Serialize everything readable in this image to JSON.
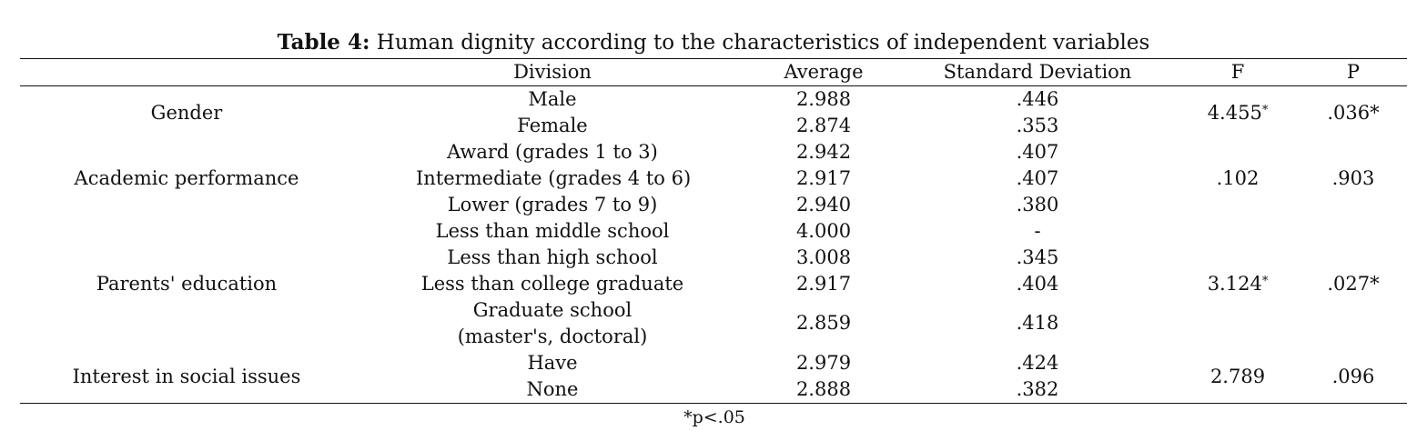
{
  "caption": {
    "label": "Table 4:",
    "text": " Human dignity according to the characteristics of independent variables"
  },
  "columns": {
    "division": "Division",
    "average": "Average",
    "sd": "Standard Deviation",
    "f": "F",
    "p": "P"
  },
  "groups": [
    {
      "name": "Gender",
      "f": "4.455",
      "f_mark": "*",
      "p": ".036",
      "p_mark": "*",
      "rows": [
        {
          "division": "Male",
          "average": "2.988",
          "sd": ".446"
        },
        {
          "division": "Female",
          "average": "2.874",
          "sd": ".353"
        }
      ]
    },
    {
      "name": "Academic performance",
      "f": ".102",
      "f_mark": "",
      "p": ".903",
      "p_mark": "",
      "rows": [
        {
          "division": "Award (grades 1 to 3)",
          "average": "2.942",
          "sd": ".407"
        },
        {
          "division": "Intermediate (grades 4 to 6)",
          "average": "2.917",
          "sd": ".407"
        },
        {
          "division": "Lower (grades 7 to 9)",
          "average": "2.940",
          "sd": ".380"
        }
      ]
    },
    {
      "name": "Parents' education",
      "f": "3.124",
      "f_mark": "*",
      "p": ".027",
      "p_mark": "*",
      "rows": [
        {
          "division": "Less than middle school",
          "average": "4.000",
          "sd": "-"
        },
        {
          "division": "Less than high school",
          "average": "3.008",
          "sd": ".345"
        },
        {
          "division": "Less than college graduate",
          "average": "2.917",
          "sd": ".404"
        },
        {
          "division": "Graduate school",
          "division_line2": "(master's, doctoral)",
          "average": "2.859",
          "sd": ".418"
        }
      ]
    },
    {
      "name": "Interest in social issues",
      "f": "2.789",
      "f_mark": "",
      "p": ".096",
      "p_mark": "",
      "rows": [
        {
          "division": "Have",
          "average": "2.979",
          "sd": ".424"
        },
        {
          "division": "None",
          "average": "2.888",
          "sd": ".382"
        }
      ]
    }
  ],
  "footnote": "*p<.05"
}
